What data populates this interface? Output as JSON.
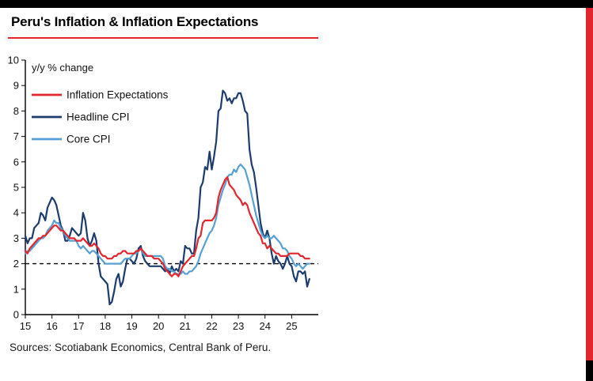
{
  "frame": {
    "top_bar_color": "#000000",
    "side_bar_color": "#e3262d",
    "corner_color": "#000000"
  },
  "header": {
    "title": "Peru's Inflation & Inflation Expectations",
    "underline_color": "#e3262d"
  },
  "footer": {
    "sources": "Sources: Scotiabank Economics, Central Bank of Peru."
  },
  "chart_data": {
    "type": "line",
    "title": "Peru's Inflation & Inflation Expectations",
    "ylabel_note": "y/y % change",
    "xlabel": "",
    "ylabel": "",
    "grid": false,
    "legend_position": "top-left",
    "x_start": 2015,
    "x_interval_months": 1,
    "xlim": [
      2015,
      2026
    ],
    "ylim": [
      0,
      10
    ],
    "yticks": [
      0,
      1,
      2,
      3,
      4,
      5,
      6,
      7,
      8,
      9,
      10
    ],
    "xticks": {
      "values": [
        2015,
        2016,
        2017,
        2018,
        2019,
        2020,
        2021,
        2022,
        2023,
        2024,
        2025
      ],
      "labels": [
        "15",
        "16",
        "17",
        "18",
        "19",
        "20",
        "21",
        "22",
        "23",
        "24",
        "25"
      ]
    },
    "reference_line": {
      "y": 2,
      "style": "dashed",
      "color": "#000000"
    },
    "series": [
      {
        "name": "Inflation Expectations",
        "color": "#e3262d",
        "values": [
          2.5,
          2.4,
          2.6,
          2.7,
          2.8,
          2.9,
          3.0,
          3.0,
          3.1,
          3.1,
          3.2,
          3.3,
          3.4,
          3.5,
          3.5,
          3.4,
          3.3,
          3.3,
          3.2,
          3.1,
          3.0,
          3.0,
          3.0,
          2.9,
          2.9,
          2.9,
          3.0,
          2.9,
          2.8,
          2.7,
          2.7,
          2.8,
          2.7,
          2.6,
          2.4,
          2.3,
          2.3,
          2.2,
          2.2,
          2.2,
          2.3,
          2.3,
          2.4,
          2.4,
          2.5,
          2.5,
          2.4,
          2.4,
          2.4,
          2.4,
          2.5,
          2.5,
          2.6,
          2.5,
          2.4,
          2.3,
          2.3,
          2.3,
          2.2,
          2.2,
          2.2,
          2.1,
          2.0,
          1.8,
          1.7,
          1.6,
          1.5,
          1.6,
          1.6,
          1.5,
          1.7,
          1.9,
          2.0,
          2.1,
          2.2,
          2.3,
          2.3,
          2.6,
          3.0,
          3.1,
          3.6,
          3.7,
          3.7,
          3.7,
          3.7,
          3.8,
          4.0,
          4.6,
          4.9,
          5.1,
          5.3,
          5.4,
          5.1,
          5.0,
          4.9,
          4.7,
          4.6,
          4.5,
          4.3,
          4.4,
          4.3,
          4.0,
          3.8,
          3.6,
          3.4,
          3.2,
          3.1,
          2.8,
          2.8,
          2.6,
          2.7,
          2.6,
          2.5,
          2.4,
          2.4,
          2.3,
          2.3,
          2.3,
          2.3,
          2.4,
          2.4,
          2.4,
          2.4,
          2.4,
          2.3,
          2.3,
          2.2,
          2.2,
          2.2
        ]
      },
      {
        "name": "Headline CPI",
        "color": "#1d3c6e",
        "values": [
          3.1,
          2.8,
          3.0,
          3.0,
          3.4,
          3.5,
          3.6,
          4.0,
          3.9,
          3.7,
          4.2,
          4.4,
          4.6,
          4.5,
          4.3,
          3.9,
          3.5,
          3.3,
          2.9,
          2.9,
          3.1,
          3.4,
          3.3,
          3.2,
          3.1,
          3.2,
          4.0,
          3.7,
          3.0,
          2.7,
          2.9,
          3.2,
          2.9,
          2.0,
          1.5,
          1.4,
          1.3,
          1.2,
          0.4,
          0.5,
          0.9,
          1.4,
          1.6,
          1.1,
          1.3,
          1.8,
          2.2,
          2.2,
          2.1,
          2.0,
          2.2,
          2.6,
          2.7,
          2.3,
          2.1,
          2.0,
          1.9,
          1.9,
          1.9,
          1.9,
          1.9,
          1.9,
          1.8,
          1.7,
          1.8,
          1.6,
          1.9,
          1.7,
          1.8,
          1.7,
          2.1,
          2.0,
          2.7,
          2.6,
          2.6,
          2.4,
          2.4,
          3.3,
          3.8,
          5.0,
          5.2,
          5.8,
          5.7,
          6.4,
          5.7,
          6.2,
          6.8,
          8.0,
          8.1,
          8.8,
          8.7,
          8.4,
          8.5,
          8.3,
          8.5,
          8.5,
          8.7,
          8.7,
          8.4,
          8.0,
          7.9,
          6.5,
          5.9,
          5.6,
          5.0,
          4.3,
          3.6,
          3.2,
          3.0,
          3.3,
          3.0,
          2.4,
          2.0,
          2.3,
          2.1,
          2.0,
          1.8,
          2.0,
          2.3,
          2.0,
          1.9,
          1.5,
          1.3,
          1.7,
          1.7,
          1.6,
          1.7,
          1.1,
          1.4
        ]
      },
      {
        "name": "Core CPI",
        "color": "#56a0d3",
        "values": [
          2.4,
          2.5,
          2.5,
          2.6,
          2.7,
          2.8,
          2.9,
          3.0,
          3.0,
          3.1,
          3.3,
          3.4,
          3.5,
          3.7,
          3.6,
          3.6,
          3.4,
          3.3,
          3.1,
          3.0,
          2.9,
          2.9,
          2.9,
          2.9,
          2.7,
          2.6,
          2.7,
          2.6,
          2.5,
          2.4,
          2.5,
          2.5,
          2.4,
          2.3,
          2.2,
          2.1,
          2.0,
          2.0,
          2.0,
          2.0,
          2.0,
          2.0,
          2.0,
          2.0,
          2.1,
          2.2,
          2.2,
          2.2,
          2.3,
          2.4,
          2.4,
          2.5,
          2.6,
          2.4,
          2.3,
          2.3,
          2.3,
          2.3,
          2.3,
          2.3,
          2.3,
          2.3,
          2.2,
          1.9,
          1.8,
          1.8,
          1.7,
          1.7,
          1.6,
          1.6,
          1.6,
          1.7,
          1.6,
          1.6,
          1.7,
          1.7,
          1.8,
          1.9,
          2.1,
          2.4,
          2.6,
          2.8,
          3.0,
          3.2,
          3.3,
          3.5,
          3.8,
          4.3,
          4.6,
          4.9,
          5.1,
          5.4,
          5.5,
          5.5,
          5.7,
          5.6,
          5.8,
          5.9,
          5.8,
          5.7,
          5.4,
          5.1,
          4.7,
          4.3,
          3.9,
          3.6,
          3.3,
          3.1,
          3.0,
          3.1,
          3.0,
          3.0,
          3.1,
          3.0,
          2.9,
          2.8,
          2.6,
          2.6,
          2.5,
          2.3,
          2.2,
          2.0,
          1.9,
          2.0,
          1.9,
          1.8,
          1.9,
          2.0,
          2.0
        ]
      }
    ]
  }
}
